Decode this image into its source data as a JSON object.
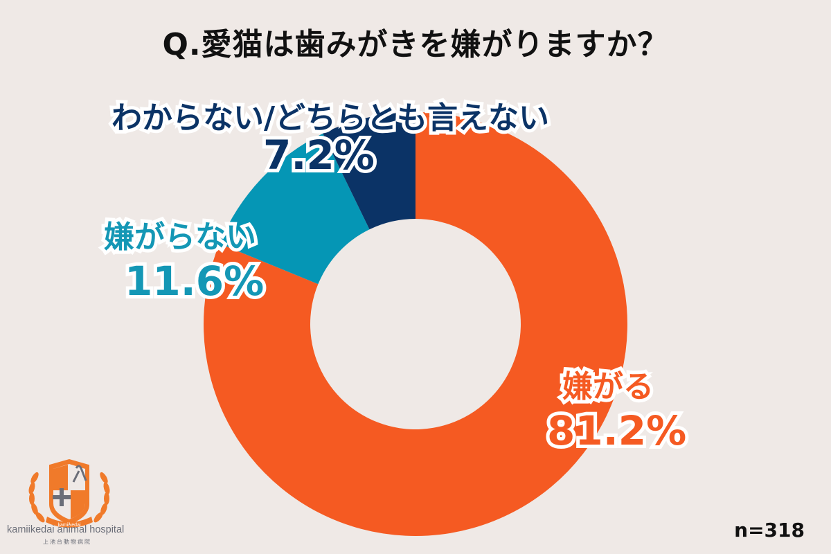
{
  "title": "Q.愛猫は歯みがきを嫌がりますか？",
  "sample_size": "n=318",
  "logo": {
    "ribbon_text": "kamiikedai",
    "name": "kamiikedai animal hospital",
    "name_jp": "上池台動物病院",
    "color": "#f07a2a"
  },
  "colors": {
    "background": "#efe9e6",
    "dislike": "#f55a22",
    "not_dislike": "#0596b5",
    "unknown": "#0b3366"
  },
  "labels": {
    "dislike": {
      "name": "嫌がる",
      "pct": "81.2%"
    },
    "not_dislike": {
      "name": "嫌がらない",
      "pct": "11.6%"
    },
    "unknown": {
      "name": "わからない/どちらとも言えない",
      "pct": "7.2%"
    }
  },
  "chart_data": {
    "type": "pie",
    "subtype": "donut",
    "title": "Q.愛猫は歯みがきを嫌がりますか？",
    "categories": [
      "嫌がる",
      "嫌がらない",
      "わからない/どちらとも言えない"
    ],
    "values": [
      81.2,
      11.6,
      7.2
    ],
    "unit": "%",
    "colors": [
      "#f55a22",
      "#0596b5",
      "#0b3366"
    ],
    "start_angle": "12 o'clock, clockwise",
    "annotations": [
      "n=318"
    ],
    "legend": "none (direct labels)"
  }
}
